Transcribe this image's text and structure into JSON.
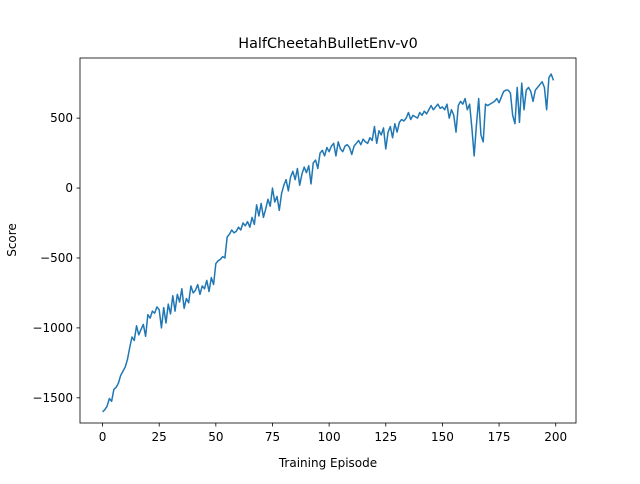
{
  "chart_data": {
    "type": "line",
    "title": "HalfCheetahBulletEnv-v0",
    "x_label": "Training Episode",
    "y_label": "Score",
    "series": [
      {
        "name": "Score",
        "color": "#1f77b4",
        "values": [
          -1600,
          -1585,
          -1560,
          -1505,
          -1525,
          -1440,
          -1425,
          -1395,
          -1340,
          -1310,
          -1280,
          -1225,
          -1140,
          -1065,
          -1090,
          -985,
          -1050,
          -1010,
          -975,
          -1060,
          -905,
          -930,
          -880,
          -895,
          -850,
          -870,
          -1000,
          -855,
          -965,
          -830,
          -900,
          -770,
          -880,
          -760,
          -815,
          -720,
          -860,
          -790,
          -820,
          -700,
          -750,
          -730,
          -690,
          -760,
          -700,
          -720,
          -660,
          -740,
          -640,
          -690,
          -540,
          -520,
          -510,
          -490,
          -500,
          -350,
          -330,
          -300,
          -320,
          -310,
          -280,
          -300,
          -250,
          -270,
          -240,
          -280,
          -210,
          -260,
          -120,
          -200,
          -110,
          -210,
          -150,
          -80,
          -130,
          0,
          -100,
          -60,
          -160,
          -40,
          20,
          60,
          -20,
          80,
          120,
          60,
          140,
          20,
          100,
          150,
          110,
          160,
          30,
          180,
          200,
          140,
          250,
          270,
          230,
          290,
          260,
          300,
          320,
          230,
          330,
          280,
          260,
          300,
          310,
          290,
          240,
          300,
          320,
          340,
          310,
          350,
          330,
          320,
          360,
          340,
          440,
          320,
          410,
          380,
          430,
          280,
          400,
          440,
          360,
          460,
          400,
          470,
          490,
          480,
          500,
          540,
          490,
          520,
          510,
          500,
          540,
          520,
          550,
          530,
          560,
          590,
          560,
          580,
          600,
          570,
          580,
          560,
          600,
          500,
          560,
          520,
          400,
          590,
          620,
          600,
          640,
          560,
          600,
          430,
          230,
          450,
          640,
          380,
          330,
          600,
          590,
          600,
          610,
          620,
          640,
          610,
          650,
          690,
          700,
          700,
          680,
          520,
          460,
          720,
          470,
          750,
          560,
          700,
          720,
          690,
          620,
          700,
          720,
          740,
          760,
          720,
          560,
          790,
          815,
          770
        ]
      }
    ],
    "xlim": [
      -9.95,
      208.95
    ],
    "xticks": [
      0,
      25,
      50,
      75,
      100,
      125,
      150,
      175,
      200
    ],
    "ylim": [
      -1680,
      930
    ],
    "yticks": [
      {
        "value": -1500,
        "label": "−1500"
      },
      {
        "value": -1000,
        "label": "−1000"
      },
      {
        "value": -500,
        "label": "−500"
      },
      0,
      500
    ]
  }
}
